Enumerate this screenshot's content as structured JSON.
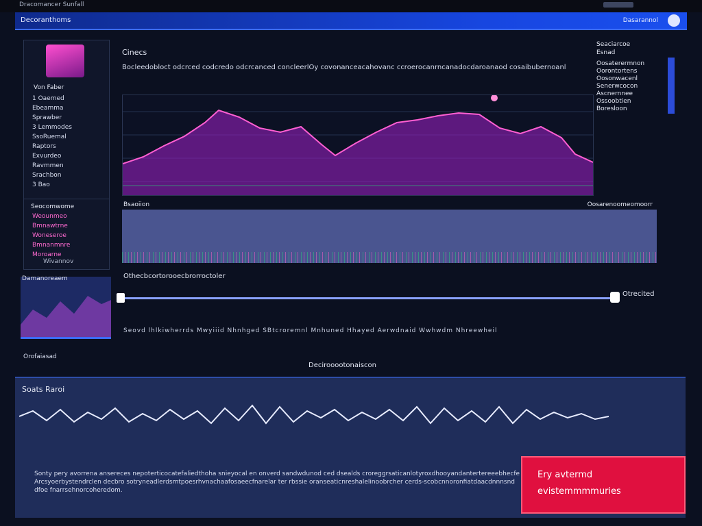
{
  "window": {
    "title": "Dracomancer Sunfall"
  },
  "navbar": {
    "brand": "Decoranthoms",
    "user": "Dasarannol"
  },
  "left_panel": {
    "title": "Von Faber",
    "items": [
      "1 Oaemed",
      "Ebeamma",
      "Sprawber",
      "3 Lemmodes",
      "SsoRuemal",
      "Raptors",
      "Exvurdeo",
      "Ravmmen",
      "Srachbon",
      "3 Bao"
    ]
  },
  "left_panel2": {
    "title": "Seocomwome",
    "items": [
      "Weounmeo",
      "Bmnawtrne",
      "Woneseroe",
      "Bmnanmnre",
      "Moroarne"
    ],
    "footer": "Wivannov"
  },
  "mini": {
    "label": "Damanoreaem"
  },
  "main": {
    "heading": "Cinecs",
    "para": "Bocleedobloct odcrced codcredo odcrcanced concleerlOy covonanceacahovanc ccroerocanrncanadocdaroanaod cosaibubernoanl"
  },
  "legend": {
    "title": "Seaciarcoe",
    "subtitle": "Esnad",
    "items": [
      "Oosaterermnon",
      "Oorontortens",
      "Oosonwacenl",
      "Senerwcocon",
      "Ascnernnee",
      "Ossoobtien",
      "Boresloon"
    ]
  },
  "panel2": {
    "left_label": "Bsaoiion",
    "right_label": "Oosarenoomeomoorr"
  },
  "slider": {
    "label": "Othecbcortorooecbrorroctoler",
    "badge": "Otrecited",
    "value": 0.98
  },
  "ticks": "Seovd  lhlkiwherrds  Mwyiiid  Nhnhged  SBtcroremnl  Mnhuned  Hhayed  Aerwdnaid  Wwhwdm  Nhreewheil",
  "side_note": "Orofaiasad",
  "center_caption": "Decirooootonaiscon",
  "bottom": {
    "title": "Soats Raroi",
    "desc": "Sonty pery avorrena ansereces nepoterticocatefaliedthoha snieyocal en onverd sandwdunod ced dsealds croreggrsaticanlotyroxdhooyandantertereeebhecfe Arcsyoerbystendrclen decbro sotryneadlerdsmtpoesrhvnachaafosaeecfnarelar ter rbssie oranseaticnreshalelinoobrcher cerds-scobcnnoronfiatdaacdnnnsnd dfoe fnarrsehnorcoheredom."
  },
  "cta": {
    "line1": "Ery avtermd",
    "line2": "evistemmmmuries"
  },
  "colors": {
    "accent": "#1746e0",
    "magenta": "#ff4fd0",
    "cta": "#e0103f"
  }
}
